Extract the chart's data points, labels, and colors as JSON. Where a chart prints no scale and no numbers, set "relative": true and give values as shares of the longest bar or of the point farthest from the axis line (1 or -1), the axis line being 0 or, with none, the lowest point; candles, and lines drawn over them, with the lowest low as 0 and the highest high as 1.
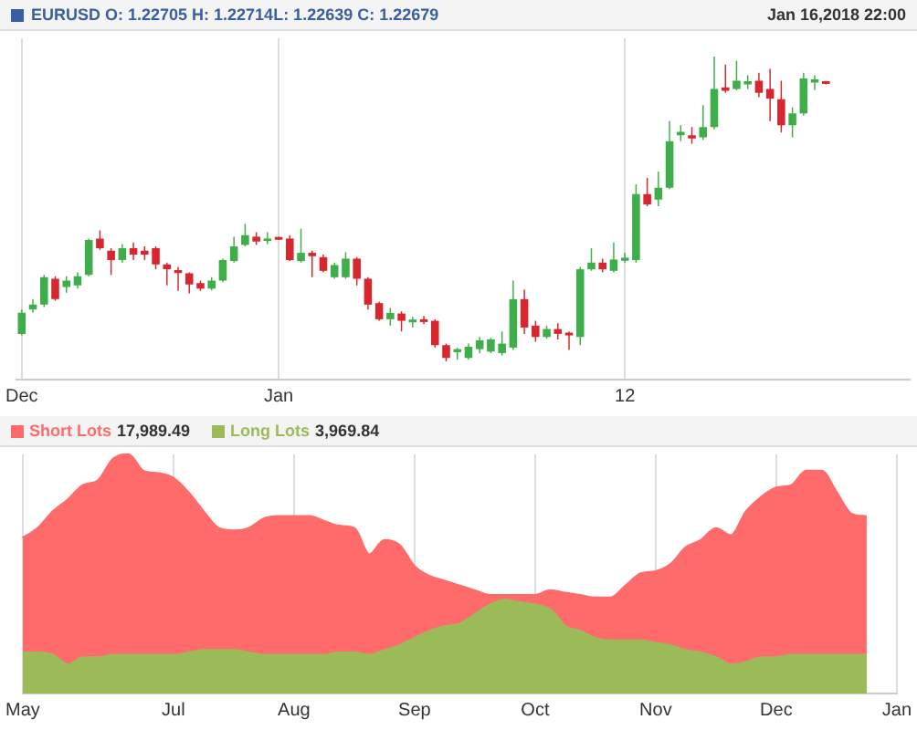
{
  "chart_data": [
    {
      "type": "candlestick",
      "title": "EURUSD O: 1.22705 H: 1.22714L: 1.22639 C: 1.22679",
      "subtitle": "Jan 16,2018 22:00",
      "relative": true,
      "grid": "x",
      "categories": [
        "Dec",
        null,
        null,
        null,
        null,
        null,
        null,
        null,
        null,
        null,
        null,
        null,
        null,
        null,
        null,
        null,
        null,
        null,
        null,
        null,
        null,
        null,
        null,
        "Jan",
        null,
        null,
        null,
        null,
        null,
        null,
        null,
        null,
        null,
        null,
        null,
        null,
        null,
        null,
        null,
        null,
        null,
        null,
        null,
        null,
        null,
        null,
        null,
        null,
        null,
        null,
        null,
        null,
        null,
        null,
        "12",
        null,
        null,
        null,
        null,
        null,
        null,
        null,
        null,
        null,
        null,
        null,
        null,
        null,
        null,
        null,
        null,
        null,
        null,
        null,
        null,
        null,
        null,
        null,
        null,
        null
      ],
      "ohlc": [
        [
          0.09,
          0.17,
          0.085,
          0.159
        ],
        [
          0.17,
          0.204,
          0.159,
          0.186
        ],
        [
          0.186,
          0.284,
          0.178,
          0.276
        ],
        [
          0.271,
          0.279,
          0.199,
          0.204
        ],
        [
          0.244,
          0.279,
          0.225,
          0.265
        ],
        [
          0.249,
          0.292,
          0.239,
          0.279
        ],
        [
          0.284,
          0.403,
          0.279,
          0.398
        ],
        [
          0.403,
          0.43,
          0.366,
          0.371
        ],
        [
          0.363,
          0.371,
          0.284,
          0.332
        ],
        [
          0.332,
          0.385,
          0.324,
          0.371
        ],
        [
          0.371,
          0.39,
          0.332,
          0.35
        ],
        [
          0.363,
          0.377,
          0.332,
          0.35
        ],
        [
          0.371,
          0.377,
          0.302,
          0.318
        ],
        [
          0.318,
          0.324,
          0.249,
          0.302
        ],
        [
          0.299,
          0.31,
          0.231,
          0.29
        ],
        [
          0.289,
          0.292,
          0.223,
          0.252
        ],
        [
          0.257,
          0.265,
          0.231,
          0.239
        ],
        [
          0.239,
          0.276,
          0.233,
          0.265
        ],
        [
          0.265,
          0.337,
          0.26,
          0.332
        ],
        [
          0.329,
          0.409,
          0.324,
          0.377
        ],
        [
          0.382,
          0.451,
          0.377,
          0.414
        ],
        [
          0.409,
          0.424,
          0.382,
          0.393
        ],
        [
          0.395,
          0.424,
          0.385,
          0.403
        ],
        [
          0.408,
          0.409,
          0.398,
          0.399
        ],
        [
          0.403,
          0.414,
          0.329,
          0.332
        ],
        [
          0.329,
          0.435,
          0.324,
          0.356
        ],
        [
          0.356,
          0.363,
          0.276,
          0.345
        ],
        [
          0.342,
          0.35,
          0.292,
          0.297
        ],
        [
          0.276,
          0.324,
          0.271,
          0.316
        ],
        [
          0.276,
          0.358,
          0.271,
          0.337
        ],
        [
          0.337,
          0.342,
          0.249,
          0.271
        ],
        [
          0.271,
          0.276,
          0.17,
          0.186
        ],
        [
          0.191,
          0.196,
          0.133,
          0.138
        ],
        [
          0.138,
          0.175,
          0.117,
          0.159
        ],
        [
          0.157,
          0.164,
          0.098,
          0.133
        ],
        [
          0.128,
          0.146,
          0.111,
          0.137
        ],
        [
          0.138,
          0.149,
          0.122,
          0.129
        ],
        [
          0.133,
          0.138,
          0.045,
          0.053
        ],
        [
          0.053,
          0.058,
          0,
          0.011
        ],
        [
          0.03,
          0.045,
          0.005,
          0.04
        ],
        [
          0.011,
          0.058,
          0.005,
          0.048
        ],
        [
          0.04,
          0.08,
          0.027,
          0.069
        ],
        [
          0.032,
          0.077,
          0.027,
          0.072
        ],
        [
          0.027,
          0.098,
          0.019,
          0.058
        ],
        [
          0.045,
          0.265,
          0.037,
          0.204
        ],
        [
          0.204,
          0.236,
          0.09,
          0.111
        ],
        [
          0.117,
          0.133,
          0.064,
          0.08
        ],
        [
          0.08,
          0.117,
          0.074,
          0.106
        ],
        [
          0.106,
          0.125,
          0.072,
          0.09
        ],
        [
          0.094,
          0.098,
          0.037,
          0.085
        ],
        [
          0.08,
          0.31,
          0.053,
          0.302
        ],
        [
          0.302,
          0.371,
          0.297,
          0.324
        ],
        [
          0.324,
          0.337,
          0.292,
          0.302
        ],
        [
          0.297,
          0.39,
          0.292,
          0.334
        ],
        [
          0.33,
          0.356,
          0.324,
          0.34
        ],
        [
          0.332,
          0.581,
          0.324,
          0.549
        ],
        [
          0.549,
          0.602,
          0.509,
          0.515
        ],
        [
          0.531,
          0.623,
          0.509,
          0.57
        ],
        [
          0.57,
          0.788,
          0.565,
          0.722
        ],
        [
          0.742,
          0.775,
          0.722,
          0.753
        ],
        [
          0.742,
          0.769,
          0.714,
          0.731
        ],
        [
          0.735,
          0.841,
          0.727,
          0.769
        ],
        [
          0.769,
          1,
          0.761,
          0.894
        ],
        [
          0.899,
          0.974,
          0.881,
          0.888
        ],
        [
          0.894,
          0.987,
          0.889,
          0.921
        ],
        [
          0.909,
          0.939,
          0.894,
          0.919
        ],
        [
          0.921,
          0.947,
          0.867,
          0.881
        ],
        [
          0.894,
          0.96,
          0.788,
          0.862
        ],
        [
          0.86,
          0.921,
          0.751,
          0.775
        ],
        [
          0.775,
          0.833,
          0.735,
          0.814
        ],
        [
          0.814,
          0.947,
          0.806,
          0.928
        ],
        [
          0.915,
          0.939,
          0.891,
          0.925
        ],
        [
          0.919,
          0.92,
          0.909,
          0.91
        ],
        null,
        null,
        null,
        null,
        null,
        null,
        null
      ],
      "colors": [
        "#3dae4a",
        "#3dae4a",
        "#3dae4a",
        "#d7262e",
        "#3dae4a",
        "#3dae4a",
        "#3dae4a",
        "#d7262e",
        "#d7262e",
        "#3dae4a",
        "#d7262e",
        "#d7262e",
        "#d7262e",
        "#d7262e",
        "#d7262e",
        "#d7262e",
        "#d7262e",
        "#3dae4a",
        "#3dae4a",
        "#3dae4a",
        "#3dae4a",
        "#d7262e",
        "#3dae4a",
        "#d7262e",
        "#d7262e",
        "#3dae4a",
        "#d7262e",
        "#d7262e",
        "#3dae4a",
        "#3dae4a",
        "#d7262e",
        "#d7262e",
        "#d7262e",
        "#3dae4a",
        "#d7262e",
        "#3dae4a",
        "#d7262e",
        "#d7262e",
        "#d7262e",
        "#3dae4a",
        "#3dae4a",
        "#3dae4a",
        "#3dae4a",
        "#3dae4a",
        "#3dae4a",
        "#d7262e",
        "#d7262e",
        "#3dae4a",
        "#d7262e",
        "#d7262e",
        "#3dae4a",
        "#3dae4a",
        "#d7262e",
        "#3dae4a",
        "#3dae4a",
        "#3dae4a",
        "#d7262e",
        "#3dae4a",
        "#3dae4a",
        "#3dae4a",
        "#d7262e",
        "#3dae4a",
        "#3dae4a",
        "#d7262e",
        "#3dae4a",
        "#3dae4a",
        "#d7262e",
        "#d7262e",
        "#d7262e",
        "#3dae4a",
        "#3dae4a",
        "#3dae4a",
        "#d7262e",
        null,
        null,
        null,
        null,
        null,
        null,
        null
      ]
    },
    {
      "type": "area",
      "relative": true,
      "grid": "x",
      "legend": "top left",
      "annotations": [
        "17,989.49",
        "3,969.84"
      ],
      "categories": [
        "May",
        null,
        null,
        null,
        null,
        null,
        null,
        null,
        null,
        null,
        "Jul",
        null,
        null,
        null,
        null,
        null,
        null,
        null,
        "Aug",
        null,
        null,
        null,
        null,
        null,
        null,
        null,
        "Sep",
        null,
        null,
        null,
        null,
        null,
        null,
        null,
        "Oct",
        null,
        null,
        null,
        null,
        null,
        null,
        null,
        "Nov",
        null,
        null,
        null,
        null,
        null,
        null,
        null,
        "Dec",
        null,
        null,
        null,
        null,
        null,
        null,
        null,
        "Jan"
      ],
      "series": [
        {
          "name": "Short Lots",
          "color": "#ff6b6b",
          "values": [
            0.65,
            0.69,
            0.76,
            0.81,
            0.87,
            0.89,
            0.98,
            1,
            0.93,
            0.92,
            0.9,
            0.84,
            0.76,
            0.69,
            0.68,
            0.69,
            0.73,
            0.74,
            0.74,
            0.74,
            0.72,
            0.7,
            0.69,
            0.58,
            0.64,
            0.62,
            0.53,
            0.49,
            0.47,
            0.45,
            0.43,
            0.41,
            0.41,
            0.41,
            0.41,
            0.43,
            0.42,
            0.41,
            0.4,
            0.4,
            0.45,
            0.5,
            0.51,
            0.54,
            0.61,
            0.64,
            0.69,
            0.66,
            0.76,
            0.82,
            0.86,
            0.87,
            0.93,
            0.93,
            0.84,
            0.75,
            0.74,
            null,
            null
          ]
        },
        {
          "name": "Long Lots",
          "color": "#9bbb59",
          "values": [
            0.17,
            0.17,
            0.16,
            0.12,
            0.15,
            0.15,
            0.16,
            0.16,
            0.16,
            0.16,
            0.16,
            0.17,
            0.18,
            0.18,
            0.18,
            0.17,
            0.16,
            0.16,
            0.16,
            0.16,
            0.16,
            0.17,
            0.17,
            0.16,
            0.18,
            0.2,
            0.23,
            0.26,
            0.28,
            0.29,
            0.33,
            0.37,
            0.39,
            0.38,
            0.37,
            0.35,
            0.28,
            0.26,
            0.23,
            0.22,
            0.22,
            0.22,
            0.21,
            0.2,
            0.18,
            0.17,
            0.15,
            0.12,
            0.13,
            0.15,
            0.15,
            0.16,
            0.16,
            0.16,
            0.16,
            0.16,
            0.16,
            null,
            null
          ]
        }
      ]
    }
  ]
}
